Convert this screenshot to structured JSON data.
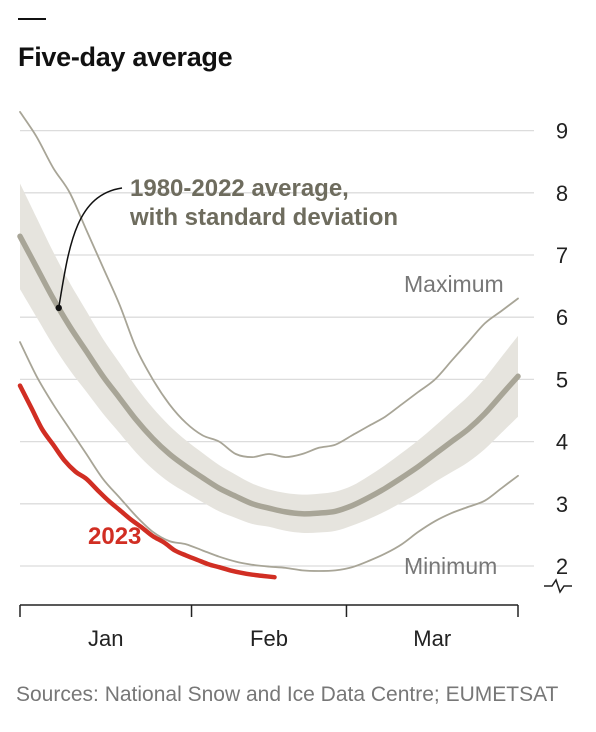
{
  "title": "Five-day average",
  "source": "Sources: National Snow and Ice Data Centre; EUMETSAT",
  "colors": {
    "band": "#e6e4de",
    "average": "#a8a597",
    "extreme": "#a8a597",
    "current": "#d12e23",
    "grid": "#dcdcdc",
    "label_dark": "#6e6c5e",
    "label_light": "#777777"
  },
  "chart_data": {
    "type": "line",
    "xlim": [
      0,
      90
    ],
    "ylim": [
      1.5,
      9.3
    ],
    "yticks": [
      2,
      3,
      4,
      5,
      6,
      7,
      8,
      9
    ],
    "month_ticks": [
      0,
      31,
      59,
      90
    ],
    "month_labels": [
      {
        "label": "Jan",
        "x": 15.5
      },
      {
        "label": "Feb",
        "x": 45
      },
      {
        "label": "Mar",
        "x": 74.5
      }
    ],
    "average_annotation": [
      "1980-2022 average,",
      "with standard deviation"
    ],
    "max_label": "Maximum",
    "min_label": "Minimum",
    "current_label": "2023",
    "axis_break": "yes",
    "series": [
      {
        "name": "Maximum",
        "x": [
          0,
          3,
          6,
          9,
          12,
          15,
          18,
          21,
          24,
          27,
          30,
          33,
          36,
          39,
          42,
          45,
          48,
          51,
          54,
          57,
          60,
          63,
          66,
          69,
          72,
          75,
          78,
          81,
          84,
          87,
          90
        ],
        "y": [
          9.3,
          8.9,
          8.4,
          8.0,
          7.4,
          6.8,
          6.2,
          5.5,
          5.0,
          4.6,
          4.3,
          4.1,
          4.0,
          3.8,
          3.75,
          3.8,
          3.75,
          3.8,
          3.9,
          3.95,
          4.1,
          4.25,
          4.4,
          4.6,
          4.8,
          5.0,
          5.3,
          5.6,
          5.9,
          6.1,
          6.3
        ]
      },
      {
        "name": "1980-2022 average",
        "x": [
          0,
          3,
          6,
          9,
          12,
          15,
          18,
          21,
          24,
          27,
          30,
          33,
          36,
          39,
          42,
          45,
          48,
          51,
          54,
          57,
          60,
          63,
          66,
          69,
          72,
          75,
          78,
          81,
          84,
          87,
          90
        ],
        "y": [
          7.3,
          6.8,
          6.3,
          5.85,
          5.45,
          5.05,
          4.7,
          4.35,
          4.05,
          3.8,
          3.6,
          3.42,
          3.25,
          3.12,
          3.0,
          2.93,
          2.87,
          2.84,
          2.85,
          2.88,
          2.97,
          3.1,
          3.25,
          3.42,
          3.6,
          3.8,
          4.0,
          4.2,
          4.45,
          4.75,
          5.05
        ]
      },
      {
        "name": "Standard deviation half-width",
        "x": [
          0,
          15,
          30,
          45,
          60,
          75,
          90
        ],
        "y": [
          0.85,
          0.6,
          0.42,
          0.3,
          0.32,
          0.45,
          0.65
        ]
      },
      {
        "name": "Minimum",
        "x": [
          0,
          3,
          6,
          9,
          12,
          15,
          18,
          21,
          24,
          27,
          30,
          33,
          36,
          39,
          42,
          45,
          48,
          51,
          54,
          57,
          60,
          63,
          66,
          69,
          72,
          75,
          78,
          81,
          84,
          87,
          90
        ],
        "y": [
          5.6,
          5.05,
          4.6,
          4.2,
          3.8,
          3.4,
          3.1,
          2.8,
          2.55,
          2.4,
          2.35,
          2.25,
          2.15,
          2.07,
          2.02,
          1.99,
          1.97,
          1.93,
          1.92,
          1.93,
          1.98,
          2.08,
          2.2,
          2.35,
          2.55,
          2.72,
          2.85,
          2.95,
          3.05,
          3.25,
          3.45
        ]
      },
      {
        "name": "2023",
        "x": [
          0,
          2,
          4,
          6,
          8,
          10,
          12,
          14,
          16,
          18,
          20,
          22,
          24,
          26,
          28,
          30,
          32,
          34,
          36,
          38,
          40,
          42,
          44,
          46
        ],
        "y": [
          4.9,
          4.55,
          4.2,
          3.95,
          3.7,
          3.52,
          3.4,
          3.22,
          3.05,
          2.9,
          2.75,
          2.62,
          2.48,
          2.38,
          2.25,
          2.17,
          2.1,
          2.03,
          1.98,
          1.93,
          1.89,
          1.86,
          1.84,
          1.82
        ]
      }
    ]
  }
}
